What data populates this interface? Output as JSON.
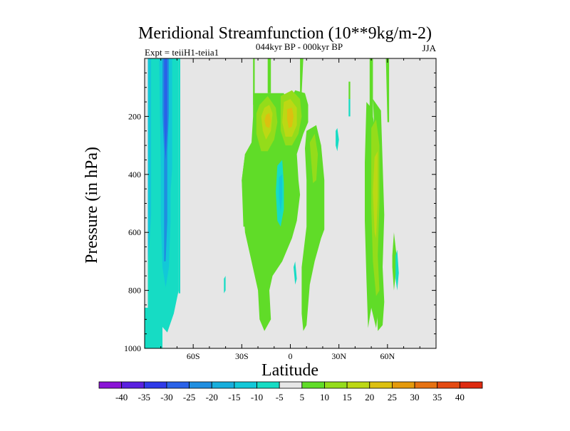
{
  "chart_data": {
    "type": "heatmap",
    "title": "Meridional Streamfunction (10**9kg/m-2)",
    "subtitle_left": "Expt = teiiH1-teiia1",
    "subtitle_center": "044kyr BP - 000kyr BP",
    "subtitle_right": "JJA",
    "xlabel": "Latitude",
    "ylabel": "Pressure (in hPa)",
    "xlim": [
      -90,
      90
    ],
    "ylim": [
      1000,
      0
    ],
    "x_ticks": [
      {
        "value": -60,
        "label": "60S"
      },
      {
        "value": -30,
        "label": "30S"
      },
      {
        "value": 0,
        "label": "0"
      },
      {
        "value": 30,
        "label": "30N"
      },
      {
        "value": 60,
        "label": "60N"
      }
    ],
    "y_ticks": [
      {
        "value": 200,
        "label": "200"
      },
      {
        "value": 400,
        "label": "400"
      },
      {
        "value": 600,
        "label": "600"
      },
      {
        "value": 800,
        "label": "800"
      },
      {
        "value": 1000,
        "label": "1000"
      }
    ],
    "background_color": "#e6e6e6",
    "colorbar": {
      "levels": [
        -40,
        -35,
        -30,
        -25,
        -20,
        -15,
        -10,
        -5,
        5,
        10,
        15,
        20,
        25,
        30,
        35,
        40
      ],
      "colors": [
        "#8a14d6",
        "#5a20e0",
        "#2f3ae8",
        "#2a62e8",
        "#1f8ee0",
        "#17aedc",
        "#12c8d8",
        "#16dcc4",
        "#e6e6e6",
        "#60dc28",
        "#94dc1a",
        "#bcd814",
        "#dcc010",
        "#e49a0c",
        "#e67212",
        "#e44a12",
        "#de2a10"
      ]
    },
    "regions": [
      {
        "level": "-10 to -5",
        "color": "#16dcc4",
        "points": [
          [
            -90,
            0
          ],
          [
            -79,
            0
          ],
          [
            -79,
            1000
          ],
          [
            -90,
            1000
          ]
        ]
      },
      {
        "level": "-10 to -5",
        "color": "#16dcc4",
        "points": [
          [
            -80,
            0
          ],
          [
            -69,
            0
          ],
          [
            -69,
            800
          ],
          [
            -72,
            880
          ],
          [
            -76,
            945
          ],
          [
            -80,
            920
          ]
        ]
      },
      {
        "level": "-5 to 5 (ref)",
        "color": "#e6e6e6",
        "points": [
          [
            -90,
            0
          ],
          [
            -88,
            0
          ],
          [
            -88,
            860
          ],
          [
            -90,
            860
          ]
        ]
      },
      {
        "level": "-10 to -5",
        "color": "#16dcc4",
        "points": [
          [
            -69,
            0
          ],
          [
            -68,
            0
          ],
          [
            -68,
            810
          ],
          [
            -69,
            810
          ]
        ]
      },
      {
        "level": "-15 to -10",
        "color": "#12c8d8",
        "points": [
          [
            -88,
            0
          ],
          [
            -86,
            0
          ],
          [
            -86,
            540
          ],
          [
            -87,
            640
          ],
          [
            -88,
            700
          ]
        ]
      },
      {
        "level": "-15 to -10",
        "color": "#12c8d8",
        "points": [
          [
            -81,
            0
          ],
          [
            -73,
            0
          ],
          [
            -73,
            380
          ],
          [
            -74,
            460
          ],
          [
            -74,
            560
          ],
          [
            -75,
            720
          ],
          [
            -77,
            790
          ],
          [
            -79,
            720
          ],
          [
            -80,
            560
          ],
          [
            -80,
            380
          ]
        ]
      },
      {
        "level": "-20 to -15",
        "color": "#1f8ee0",
        "points": [
          [
            -79,
            0
          ],
          [
            -75,
            0
          ],
          [
            -75,
            190
          ],
          [
            -76,
            320
          ],
          [
            -76,
            560
          ],
          [
            -77,
            700
          ],
          [
            -78,
            700
          ],
          [
            -78,
            560
          ],
          [
            -78,
            320
          ],
          [
            -79,
            190
          ]
        ]
      },
      {
        "level": "-25 to -20",
        "color": "#2a62e8",
        "points": [
          [
            -78,
            0
          ],
          [
            -76,
            0
          ],
          [
            -76,
            230
          ],
          [
            -77,
            350
          ],
          [
            -78,
            230
          ]
        ]
      },
      {
        "level": "5 to 10",
        "color": "#60dc28",
        "points": [
          [
            -14,
            0
          ],
          [
            -12,
            0
          ],
          [
            -12,
            120
          ],
          [
            -14,
            120
          ]
        ]
      },
      {
        "level": "5 to 10",
        "color": "#60dc28",
        "points": [
          [
            -23,
            120
          ],
          [
            -4,
            120
          ],
          [
            -2,
            160
          ],
          [
            3,
            110
          ],
          [
            9,
            120
          ],
          [
            11,
            160
          ],
          [
            11,
            220
          ],
          [
            8,
            260
          ],
          [
            4,
            330
          ],
          [
            5,
            420
          ],
          [
            6,
            470
          ],
          [
            4,
            560
          ],
          [
            1,
            620
          ],
          [
            -5,
            700
          ],
          [
            -11,
            750
          ],
          [
            -13,
            800
          ],
          [
            -12,
            900
          ],
          [
            -16,
            940
          ],
          [
            -19,
            900
          ],
          [
            -20,
            800
          ],
          [
            -24,
            700
          ],
          [
            -28,
            600
          ],
          [
            -29,
            520
          ],
          [
            -30,
            420
          ],
          [
            -28,
            330
          ],
          [
            -24,
            290
          ],
          [
            -23,
            200
          ]
        ]
      },
      {
        "level": "5 to 10",
        "color": "#60dc28",
        "points": [
          [
            -28,
            330
          ],
          [
            -25,
            390
          ],
          [
            -26,
            580
          ],
          [
            -29,
            580
          ],
          [
            -30,
            420
          ]
        ]
      },
      {
        "level": "5 to 10",
        "color": "#60dc28",
        "points": [
          [
            10,
            250
          ],
          [
            16,
            230
          ],
          [
            19,
            300
          ],
          [
            21,
            420
          ],
          [
            21,
            590
          ],
          [
            19,
            620
          ],
          [
            15,
            700
          ],
          [
            12,
            780
          ],
          [
            10,
            920
          ],
          [
            8,
            940
          ],
          [
            7,
            880
          ],
          [
            7,
            720
          ],
          [
            10,
            580
          ],
          [
            10,
            420
          ],
          [
            9,
            310
          ]
        ]
      },
      {
        "level": "5 to 10",
        "color": "#60dc28",
        "points": [
          [
            6,
            0
          ],
          [
            8,
            0
          ],
          [
            7,
            120
          ],
          [
            6,
            120
          ]
        ]
      },
      {
        "level": "5 to 10",
        "color": "#60dc28",
        "points": [
          [
            -23,
            0
          ],
          [
            -22,
            0
          ],
          [
            -22,
            160
          ],
          [
            -23,
            160
          ]
        ]
      },
      {
        "level": "5 to 10",
        "color": "#60dc28",
        "points": [
          [
            47,
            150
          ],
          [
            50,
            170
          ],
          [
            53,
            260
          ],
          [
            53,
            460
          ],
          [
            52,
            600
          ],
          [
            53,
            740
          ],
          [
            54,
            880
          ],
          [
            53,
            930
          ],
          [
            50,
            860
          ],
          [
            48,
            930
          ],
          [
            47,
            760
          ],
          [
            46,
            560
          ],
          [
            46,
            360
          ]
        ]
      },
      {
        "level": "5 to 10",
        "color": "#60dc28",
        "points": [
          [
            49,
            0
          ],
          [
            51,
            0
          ],
          [
            51,
            200
          ],
          [
            49,
            200
          ]
        ]
      },
      {
        "level": "5 to 10",
        "color": "#60dc28",
        "points": [
          [
            51,
            140
          ],
          [
            56,
            180
          ],
          [
            57,
            360
          ],
          [
            58,
            540
          ],
          [
            57,
            720
          ],
          [
            58,
            840
          ],
          [
            57,
            920
          ],
          [
            54,
            940
          ],
          [
            53,
            760
          ],
          [
            52,
            460
          ],
          [
            52,
            260
          ]
        ]
      },
      {
        "level": "5 to 10",
        "color": "#60dc28",
        "points": [
          [
            59,
            0
          ],
          [
            61,
            0
          ],
          [
            61,
            220
          ],
          [
            60,
            220
          ]
        ]
      },
      {
        "level": "5 to 10",
        "color": "#60dc28",
        "points": [
          [
            63,
            680
          ],
          [
            64,
            600
          ],
          [
            66,
            700
          ],
          [
            64,
            800
          ],
          [
            63,
            720
          ]
        ]
      },
      {
        "level": "5 to 10",
        "color": "#60dc28",
        "points": [
          [
            36,
            80
          ],
          [
            37,
            80
          ],
          [
            37,
            140
          ],
          [
            36,
            140
          ]
        ]
      },
      {
        "level": "10 to 15",
        "color": "#94dc1a",
        "points": [
          [
            -19,
            160
          ],
          [
            -14,
            130
          ],
          [
            -9,
            170
          ],
          [
            -8,
            220
          ],
          [
            -10,
            280
          ],
          [
            -14,
            320
          ],
          [
            -18,
            320
          ],
          [
            -21,
            260
          ],
          [
            -21,
            190
          ]
        ]
      },
      {
        "level": "10 to 15",
        "color": "#94dc1a",
        "points": [
          [
            -6,
            130
          ],
          [
            1,
            110
          ],
          [
            6,
            140
          ],
          [
            7,
            200
          ],
          [
            5,
            260
          ],
          [
            1,
            300
          ],
          [
            -3,
            300
          ],
          [
            -6,
            250
          ]
        ]
      },
      {
        "level": "10 to 15",
        "color": "#94dc1a",
        "points": [
          [
            12,
            290
          ],
          [
            15,
            260
          ],
          [
            17,
            330
          ],
          [
            16,
            420
          ],
          [
            14,
            430
          ],
          [
            13,
            360
          ]
        ]
      },
      {
        "level": "10 to 15",
        "color": "#94dc1a",
        "points": [
          [
            50,
            240
          ],
          [
            53,
            210
          ],
          [
            55,
            300
          ],
          [
            55,
            500
          ],
          [
            54,
            680
          ],
          [
            55,
            800
          ],
          [
            53,
            820
          ],
          [
            51,
            700
          ],
          [
            50,
            520
          ],
          [
            50,
            360
          ]
        ]
      },
      {
        "level": "15 to 20",
        "color": "#bcd814",
        "points": [
          [
            -16,
            170
          ],
          [
            -13,
            160
          ],
          [
            -11,
            190
          ],
          [
            -12,
            250
          ],
          [
            -15,
            280
          ],
          [
            -17,
            250
          ],
          [
            -18,
            200
          ]
        ]
      },
      {
        "level": "15 to 20",
        "color": "#bcd814",
        "points": [
          [
            -4,
            150
          ],
          [
            0,
            140
          ],
          [
            4,
            170
          ],
          [
            4,
            230
          ],
          [
            1,
            270
          ],
          [
            -3,
            270
          ],
          [
            -5,
            220
          ]
        ]
      },
      {
        "level": "15 to 20",
        "color": "#bcd814",
        "points": [
          [
            52,
            340
          ],
          [
            54,
            320
          ],
          [
            54,
            480
          ],
          [
            53,
            620
          ],
          [
            52,
            600
          ],
          [
            51,
            460
          ]
        ]
      },
      {
        "level": "20 to 25",
        "color": "#dcc010",
        "points": [
          [
            -15,
            195
          ],
          [
            -13,
            188
          ],
          [
            -12,
            215
          ],
          [
            -13,
            240
          ],
          [
            -15,
            235
          ],
          [
            -16,
            215
          ]
        ]
      },
      {
        "level": "20 to 25",
        "color": "#dcc010",
        "points": [
          [
            -2,
            175
          ],
          [
            1,
            170
          ],
          [
            2,
            200
          ],
          [
            1,
            235
          ],
          [
            -1,
            240
          ],
          [
            -2,
            210
          ]
        ]
      },
      {
        "level": "-10 to -5",
        "color": "#16dcc4",
        "points": [
          [
            -8,
            370
          ],
          [
            -5,
            350
          ],
          [
            -4,
            430
          ],
          [
            -4,
            520
          ],
          [
            -6,
            580
          ],
          [
            -8,
            560
          ],
          [
            -9,
            460
          ]
        ]
      },
      {
        "level": "-15 to -10",
        "color": "#12c8d8",
        "points": [
          [
            -7,
            410
          ],
          [
            -5,
            400
          ],
          [
            -5,
            480
          ],
          [
            -6,
            530
          ],
          [
            -7,
            480
          ]
        ]
      },
      {
        "level": "-10 to -5",
        "color": "#16dcc4",
        "points": [
          [
            28,
            250
          ],
          [
            29,
            240
          ],
          [
            30,
            280
          ],
          [
            29,
            320
          ],
          [
            28,
            300
          ]
        ]
      },
      {
        "level": "-10 to -5",
        "color": "#16dcc4",
        "points": [
          [
            36,
            140
          ],
          [
            37,
            140
          ],
          [
            37,
            200
          ],
          [
            36,
            200
          ]
        ]
      },
      {
        "level": "-10 to -5",
        "color": "#16dcc4",
        "points": [
          [
            -41,
            760
          ],
          [
            -40,
            750
          ],
          [
            -40,
            800
          ],
          [
            -41,
            810
          ]
        ]
      },
      {
        "level": "-10 to -5",
        "color": "#16dcc4",
        "points": [
          [
            2,
            720
          ],
          [
            3,
            700
          ],
          [
            4,
            760
          ],
          [
            3,
            780
          ]
        ]
      },
      {
        "level": "-10 to -5",
        "color": "#16dcc4",
        "points": [
          [
            65,
            680
          ],
          [
            66,
            660
          ],
          [
            67,
            740
          ],
          [
            66,
            800
          ],
          [
            65,
            760
          ]
        ]
      }
    ]
  }
}
